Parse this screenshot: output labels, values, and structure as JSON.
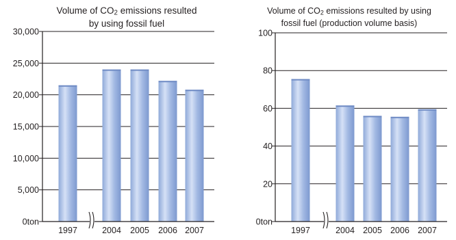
{
  "chart_data": [
    {
      "type": "bar",
      "title_line1_pre": "Volume of CO",
      "title_sub": "2",
      "title_line1_post": " emissions resulted",
      "title_line2": "by using fossil fuel",
      "categories": [
        "1997",
        "2004",
        "2005",
        "2006",
        "2007"
      ],
      "values": [
        21500,
        24000,
        24000,
        22200,
        20800
      ],
      "ylim": [
        0,
        30000
      ],
      "yticks": [
        0,
        5000,
        10000,
        15000,
        20000,
        25000,
        30000
      ],
      "ytick_labels": [
        "0ton",
        "5,000",
        "10,000",
        "15,000",
        "20,000",
        "25,000",
        "30,000"
      ],
      "axis_break": "after-first-category",
      "grid": true,
      "bar_color": "#a3b9e3"
    },
    {
      "type": "bar",
      "title_line1_pre": "Volume of CO",
      "title_sub": "2",
      "title_line1_post": " emissions resulted by using",
      "title_line2": "fossil fuel (production volume basis)",
      "categories": [
        "1997",
        "2004",
        "2005",
        "2006",
        "2007"
      ],
      "values": [
        75.5,
        61.5,
        56,
        55.5,
        59.5
      ],
      "ylim": [
        0,
        100
      ],
      "yticks": [
        0,
        20,
        40,
        60,
        80,
        100
      ],
      "ytick_labels": [
        "0ton",
        "20",
        "40",
        "60",
        "80",
        "100"
      ],
      "axis_break": "after-first-category",
      "grid": true,
      "bar_color": "#a3b9e3"
    }
  ]
}
